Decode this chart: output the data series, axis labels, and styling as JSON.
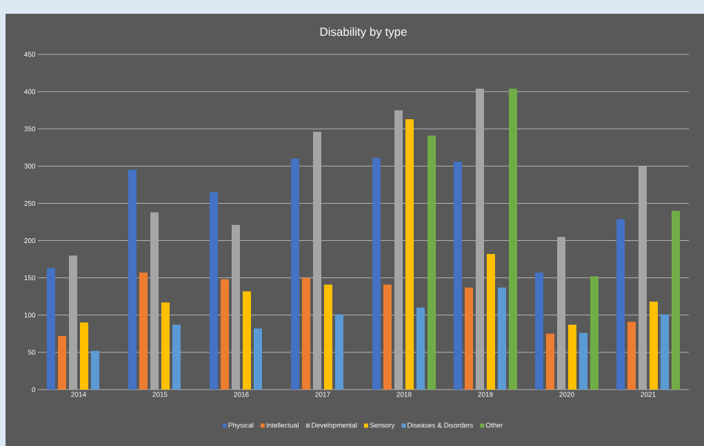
{
  "chart_data": {
    "type": "bar",
    "title": "Disability by type",
    "categories": [
      "2014",
      "2015",
      "2016",
      "2017",
      "2018",
      "2019",
      "2020",
      "2021"
    ],
    "series": [
      {
        "name": "Physical",
        "color": "#4472c4",
        "values": [
          163,
          295,
          265,
          310,
          311,
          306,
          157,
          229
        ]
      },
      {
        "name": "Intellectual",
        "color": "#ed7d31",
        "values": [
          72,
          157,
          148,
          150,
          141,
          137,
          75,
          91
        ]
      },
      {
        "name": "Developmental",
        "color": "#a5a5a5",
        "values": [
          180,
          238,
          221,
          346,
          375,
          404,
          205,
          300
        ]
      },
      {
        "name": "Sensory",
        "color": "#ffc000",
        "values": [
          90,
          117,
          132,
          141,
          363,
          182,
          87,
          118
        ]
      },
      {
        "name": "Diseases & Disorders",
        "color": "#5b9bd5",
        "values": [
          52,
          87,
          82,
          101,
          110,
          137,
          76,
          101
        ]
      },
      {
        "name": "Other",
        "color": "#70ad47",
        "values": [
          null,
          null,
          null,
          null,
          341,
          404,
          152,
          240
        ]
      }
    ],
    "ylim": [
      0,
      450
    ],
    "yticks": [
      0,
      50,
      100,
      150,
      200,
      250,
      300,
      350,
      400,
      450
    ],
    "grid": "y",
    "legend": "bottom"
  }
}
